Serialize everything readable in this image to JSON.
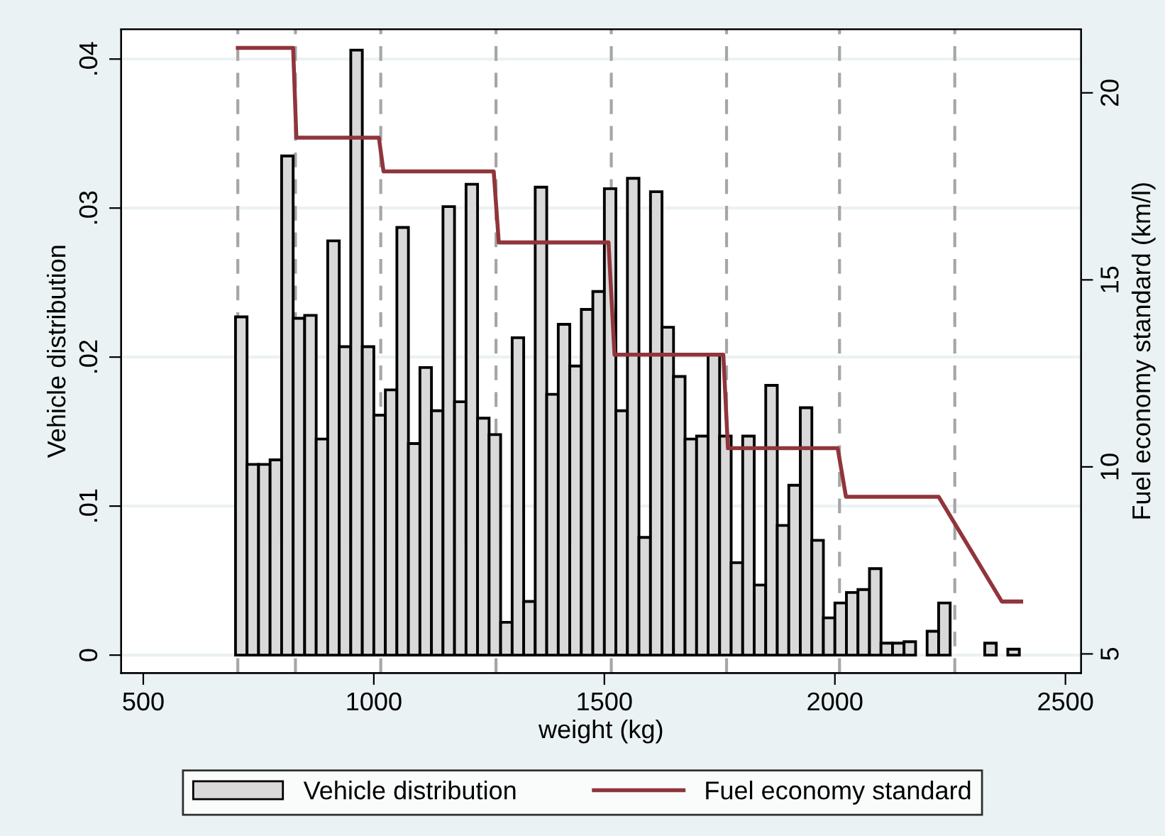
{
  "chart_data": {
    "type": "histogram",
    "xlabel": "weight (kg)",
    "ylabel": "Vehicle distribution",
    "y2label": "Fuel economy standard (km/l)",
    "xlim": [
      452,
      2534
    ],
    "xticks": [
      500,
      1000,
      1500,
      2000,
      2500
    ],
    "ylim": [
      -0.0012,
      0.042
    ],
    "yticks": [
      {
        "value": 0,
        "label": "0"
      },
      {
        "value": 0.01,
        "label": ".01"
      },
      {
        "value": 0.02,
        "label": ".02"
      },
      {
        "value": 0.03,
        "label": ".03"
      },
      {
        "value": 0.04,
        "label": ".04"
      }
    ],
    "y2lim": [
      4.49,
      21.7
    ],
    "y2ticks": [
      5,
      10,
      15,
      20
    ],
    "grid": "y",
    "legend": "bottom",
    "series": [
      {
        "name": "Vehicle distribution",
        "color": "#d9d9d9",
        "bins": [
          700,
          725,
          750,
          775,
          800,
          825,
          850,
          875,
          900,
          925,
          950,
          975,
          1000,
          1025,
          1050,
          1075,
          1100,
          1125,
          1150,
          1175,
          1200,
          1225,
          1250,
          1275,
          1300,
          1325,
          1350,
          1375,
          1400,
          1425,
          1450,
          1475,
          1500,
          1525,
          1550,
          1575,
          1600,
          1625,
          1650,
          1675,
          1700,
          1725,
          1750,
          1775,
          1800,
          1825,
          1850,
          1875,
          1900,
          1925,
          1950,
          1975,
          2000,
          2025,
          2050,
          2075,
          2100,
          2125,
          2150,
          2175,
          2200,
          2225,
          2250,
          2275,
          2300,
          2325,
          2350,
          2375,
          2400
        ],
        "values": [
          0.0227,
          0.0128,
          0.0128,
          0.0131,
          0.0335,
          0.0226,
          0.0228,
          0.0145,
          0.0278,
          0.0207,
          0.0406,
          0.0207,
          0.0161,
          0.0178,
          0.0287,
          0.0142,
          0.0193,
          0.0164,
          0.0301,
          0.017,
          0.0316,
          0.0159,
          0.0148,
          0.0022,
          0.0213,
          0.0036,
          0.0314,
          0.0175,
          0.0222,
          0.0194,
          0.0232,
          0.0244,
          0.0313,
          0.0164,
          0.032,
          0.0079,
          0.0311,
          0.022,
          0.0187,
          0.0145,
          0.0147,
          0.0202,
          0.0147,
          0.0062,
          0.0147,
          0.0047,
          0.0181,
          0.0087,
          0.0114,
          0.0166,
          0.0077,
          0.0025,
          0.0035,
          0.0042,
          0.0044,
          0.0058,
          0.0008,
          0.0008,
          0.0009,
          null,
          0.0016,
          0.0035,
          null,
          null,
          null,
          0.0008,
          null,
          0.0004
        ]
      },
      {
        "type": "line",
        "axis": "y2",
        "name": "Fuel economy standard",
        "color": "#90353b",
        "x": [
          705,
          825,
          832,
          1011,
          1021,
          1260,
          1271,
          1509,
          1522,
          1758,
          1768,
          2006,
          2024,
          2225,
          2362,
          2404
        ],
        "values": [
          21.2,
          21.2,
          18.8,
          18.8,
          17.9,
          17.9,
          16.0,
          16.0,
          13.0,
          13.0,
          10.5,
          10.5,
          9.2,
          9.2,
          6.4,
          6.4
        ]
      }
    ],
    "ref_lines": [
      {
        "axis": "x",
        "value": 705,
        "color": "#a6a6a6",
        "line_style": "dashed"
      },
      {
        "axis": "x",
        "value": 830,
        "color": "#a6a6a6",
        "line_style": "dashed"
      },
      {
        "axis": "x",
        "value": 1015,
        "color": "#a6a6a6",
        "line_style": "dashed"
      },
      {
        "axis": "x",
        "value": 1265,
        "color": "#a6a6a6",
        "line_style": "dashed"
      },
      {
        "axis": "x",
        "value": 1515,
        "color": "#a6a6a6",
        "line_style": "dashed"
      },
      {
        "axis": "x",
        "value": 1765,
        "color": "#a6a6a6",
        "line_style": "dashed"
      },
      {
        "axis": "x",
        "value": 2010,
        "color": "#a6a6a6",
        "line_style": "dashed"
      },
      {
        "axis": "x",
        "value": 2260,
        "color": "#a6a6a6",
        "line_style": "dashed"
      }
    ]
  }
}
